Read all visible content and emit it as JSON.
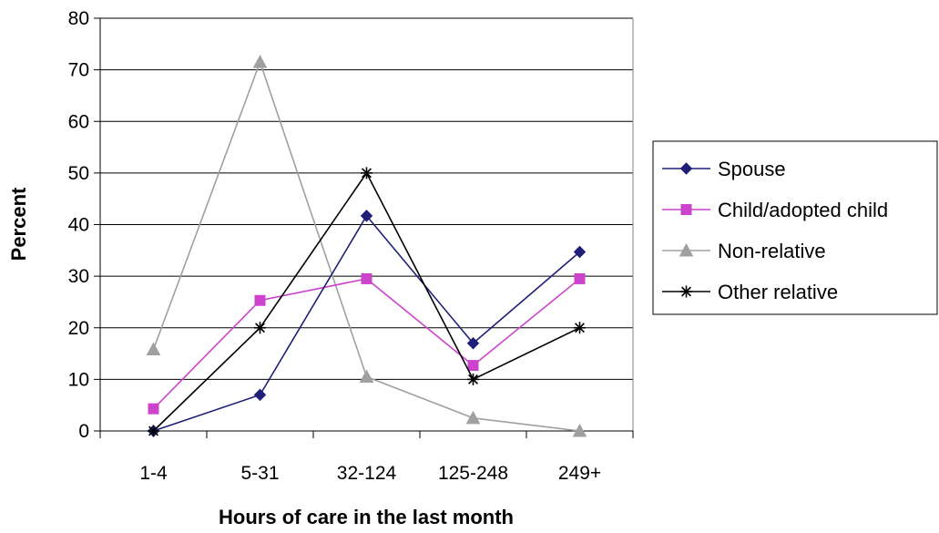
{
  "chart_data": {
    "type": "line",
    "title": "",
    "xlabel": "Hours of care in the last month",
    "ylabel": "Percent",
    "categories": [
      "1-4",
      "5-31",
      "32-124",
      "125-248",
      "249+"
    ],
    "ylim": [
      0,
      80
    ],
    "yticks": [
      0,
      10,
      20,
      30,
      40,
      50,
      60,
      70,
      80
    ],
    "grid": "horizontal",
    "legend_position": "right",
    "series": [
      {
        "name": "Spouse",
        "color": "#1f1f7a",
        "marker": "diamond",
        "values": [
          0,
          7,
          41.7,
          17,
          34.7
        ]
      },
      {
        "name": "Child/adopted child",
        "color": "#cc44cc",
        "marker": "square",
        "values": [
          4.3,
          25.3,
          29.5,
          12.7,
          29.5
        ]
      },
      {
        "name": "Non-relative",
        "color": "#a0a0a0",
        "marker": "triangle",
        "values": [
          15.8,
          71.5,
          10.5,
          2.5,
          0
        ]
      },
      {
        "name": "Other relative",
        "color": "#000000",
        "marker": "star",
        "values": [
          0,
          20,
          50,
          10,
          20
        ]
      }
    ]
  }
}
